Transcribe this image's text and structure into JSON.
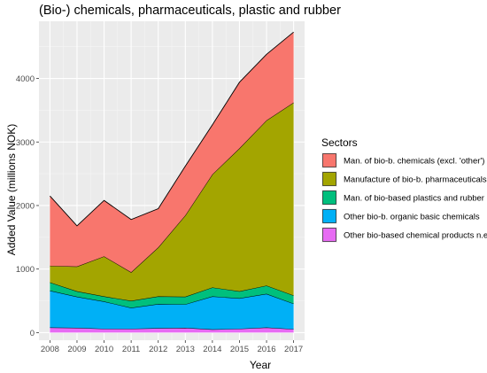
{
  "chart_data": {
    "type": "area",
    "stacked": true,
    "title": "(Bio-) chemicals, pharmaceuticals, plastic and rubber",
    "xlabel": "Year",
    "ylabel": "Added Value (millions NOK)",
    "x": [
      2008,
      2009,
      2010,
      2011,
      2012,
      2013,
      2014,
      2015,
      2016,
      2017
    ],
    "x_ticks": [
      "2008",
      "2009",
      "2010",
      "2011",
      "2012",
      "2013",
      "2014",
      "2015",
      "2016",
      "2017"
    ],
    "y_ticks": [
      0,
      1000,
      2000,
      3000,
      4000
    ],
    "y_tick_labels": [
      "0",
      "1000",
      "2000",
      "3000",
      "4000"
    ],
    "ylim": [
      -120,
      4900
    ],
    "grid": true,
    "background_color": "#EBEBEB",
    "legend_title": "Sectors",
    "legend_position": "right",
    "series": [
      {
        "name": "Other bio-based chemical products n.e.c.",
        "color": "#E76BF3",
        "values": [
          80,
          75,
          60,
          60,
          70,
          75,
          50,
          60,
          80,
          55
        ]
      },
      {
        "name": "Other bio-b. organic basic chemicals",
        "color": "#00B0F6",
        "values": [
          580,
          490,
          430,
          330,
          380,
          370,
          520,
          480,
          530,
          400
        ]
      },
      {
        "name": "Man. of bio-based plastics and rubber",
        "color": "#00BF7D",
        "values": [
          130,
          85,
          80,
          110,
          120,
          120,
          140,
          110,
          130,
          130
        ]
      },
      {
        "name": "Manufacture of bio-b. pharmaceuticals",
        "color": "#A3A500",
        "values": [
          260,
          390,
          630,
          450,
          770,
          1280,
          1780,
          2250,
          2600,
          3035
        ]
      },
      {
        "name": "Man. of bio-b. chemicals (excl. 'other')",
        "color": "#F8766D",
        "values": [
          1100,
          640,
          880,
          830,
          610,
          775,
          780,
          1040,
          1040,
          1110
        ]
      }
    ],
    "legend_order": [
      "Man. of bio-b. chemicals (excl. 'other')",
      "Manufacture of bio-b. pharmaceuticals",
      "Man. of bio-based plastics and rubber",
      "Other bio-b. organic basic chemicals",
      "Other bio-based chemical products n.e.c."
    ]
  }
}
